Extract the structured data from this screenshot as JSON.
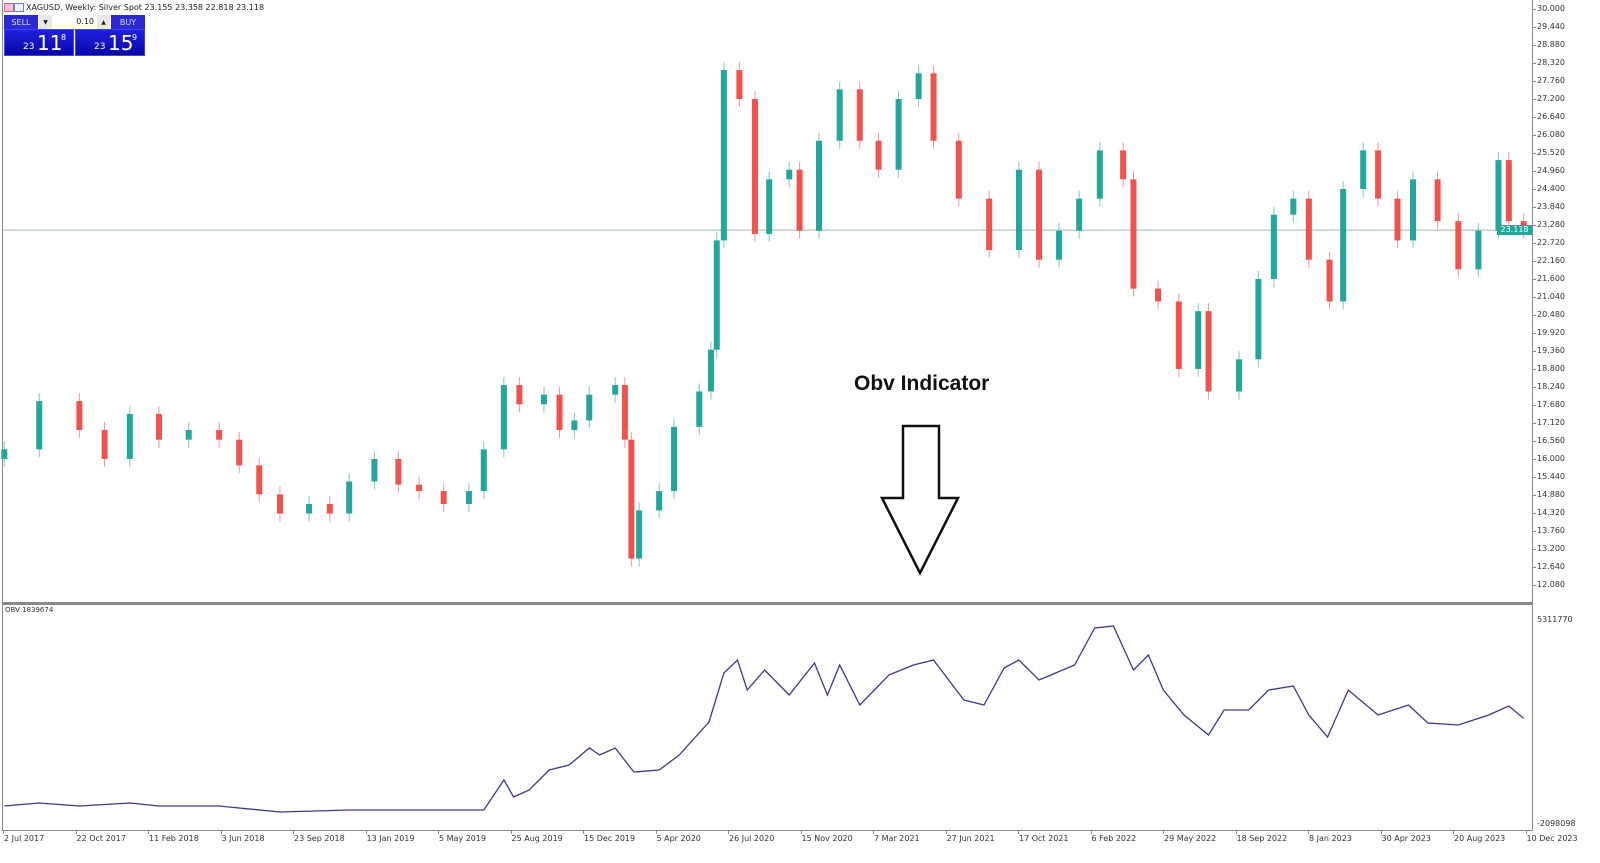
{
  "header": {
    "title": "XAGUSD, Weekly:  Silver Spot  23.155 23.358 22.818 23.118"
  },
  "trade_panel": {
    "sell_label": "SELL",
    "buy_label": "BUY",
    "lot": "0.10",
    "sell_price": {
      "big": "23",
      "main": "11",
      "small": "8"
    },
    "buy_price": {
      "big": "23",
      "main": "15",
      "small": "9"
    }
  },
  "annotation": {
    "text": "Obv Indicator",
    "icon": "arrow-down-icon"
  },
  "colors": {
    "bull": "#26a69a",
    "bear": "#ef5350",
    "obv_line": "#3a3a8c",
    "price_line": "#a0b8b0"
  },
  "chart_data": [
    {
      "type": "candlestick",
      "symbol": "XAGUSD",
      "timeframe": "Weekly",
      "ylim": [
        11.7,
        30.2
      ],
      "current_price": "23.118",
      "y_ticks": [
        "30.000",
        "29.440",
        "28.880",
        "28.320",
        "27.760",
        "27.200",
        "26.640",
        "26.080",
        "25.520",
        "24.960",
        "24.400",
        "23.840",
        "23.280",
        "22.720",
        "22.160",
        "21.600",
        "21.040",
        "20.480",
        "19.920",
        "19.360",
        "18.800",
        "18.240",
        "17.680",
        "17.120",
        "16.560",
        "16.000",
        "15.440",
        "14.880",
        "14.320",
        "13.760",
        "13.200",
        "12.640",
        "12.080"
      ],
      "closes": [
        [
          "2017-07-04",
          16.3
        ],
        [
          "2017-08-27",
          17.8
        ],
        [
          "2017-10-28",
          16.9
        ],
        [
          "2017-12-06",
          16.0
        ],
        [
          "2018-01-14",
          17.4
        ],
        [
          "2018-02-28",
          16.6
        ],
        [
          "2018-04-15",
          16.9
        ],
        [
          "2018-06-01",
          16.6
        ],
        [
          "2018-07-02",
          15.8
        ],
        [
          "2018-08-02",
          14.9
        ],
        [
          "2018-09-03",
          14.3
        ],
        [
          "2018-10-18",
          14.6
        ],
        [
          "2018-11-19",
          14.3
        ],
        [
          "2018-12-19",
          15.3
        ],
        [
          "2019-01-27",
          16.0
        ],
        [
          "2019-03-05",
          15.2
        ],
        [
          "2019-04-06",
          15.0
        ],
        [
          "2019-05-14",
          14.6
        ],
        [
          "2019-06-22",
          15.0
        ],
        [
          "2019-07-15",
          16.3
        ],
        [
          "2019-08-15",
          18.3
        ],
        [
          "2019-09-08",
          17.7
        ],
        [
          "2019-10-16",
          18.0
        ],
        [
          "2019-11-09",
          16.9
        ],
        [
          "2019-12-02",
          17.2
        ],
        [
          "2019-12-25",
          18.0
        ],
        [
          "2020-02-03",
          18.3
        ],
        [
          "2020-02-18",
          16.6
        ],
        [
          "2020-02-28",
          12.9
        ],
        [
          "2020-03-11",
          14.4
        ],
        [
          "2020-04-11",
          15.0
        ],
        [
          "2020-05-04",
          17.0
        ],
        [
          "2020-06-12",
          18.1
        ],
        [
          "2020-06-30",
          19.4
        ],
        [
          "2020-07-09",
          22.8
        ],
        [
          "2020-07-20",
          28.1
        ],
        [
          "2020-08-13",
          27.2
        ],
        [
          "2020-09-06",
          23.0
        ],
        [
          "2020-09-28",
          24.7
        ],
        [
          "2020-10-29",
          25.0
        ],
        [
          "2020-11-14",
          23.1
        ],
        [
          "2020-12-14",
          25.9
        ],
        [
          "2021-01-15",
          27.5
        ],
        [
          "2021-02-15",
          25.9
        ],
        [
          "2021-03-16",
          25.0
        ],
        [
          "2021-04-16",
          27.2
        ],
        [
          "2021-05-17",
          28.0
        ],
        [
          "2021-06-09",
          25.9
        ],
        [
          "2021-07-18",
          24.1
        ],
        [
          "2021-09-03",
          22.5
        ],
        [
          "2021-10-19",
          25.0
        ],
        [
          "2021-11-19",
          22.2
        ],
        [
          "2021-12-20",
          23.1
        ],
        [
          "2022-01-20",
          24.1
        ],
        [
          "2022-02-21",
          25.6
        ],
        [
          "2022-03-29",
          24.7
        ],
        [
          "2022-04-14",
          21.3
        ],
        [
          "2022-05-22",
          20.9
        ],
        [
          "2022-06-23",
          18.8
        ],
        [
          "2022-07-23",
          20.6
        ],
        [
          "2022-08-08",
          18.1
        ],
        [
          "2022-09-24",
          19.1
        ],
        [
          "2022-10-24",
          21.6
        ],
        [
          "2022-11-17",
          23.6
        ],
        [
          "2022-12-17",
          24.1
        ],
        [
          "2023-01-10",
          22.2
        ],
        [
          "2023-02-11",
          20.9
        ],
        [
          "2023-03-04",
          24.4
        ],
        [
          "2023-04-04",
          25.6
        ],
        [
          "2023-04-27",
          24.1
        ],
        [
          "2023-05-27",
          22.8
        ],
        [
          "2023-06-20",
          24.7
        ],
        [
          "2023-07-28",
          23.4
        ],
        [
          "2023-08-29",
          21.9
        ],
        [
          "2023-09-29",
          23.1
        ],
        [
          "2023-10-30",
          25.3
        ],
        [
          "2023-11-15",
          23.4
        ],
        [
          "2023-12-08",
          23.118
        ]
      ]
    },
    {
      "type": "line",
      "name": "OBV",
      "label": "OBV 1839674",
      "ylim": [
        -2098098,
        5311770
      ],
      "y_ticks": [
        "5311770",
        "-2098098"
      ],
      "points": [
        [
          "2017-07-04",
          -1250000
        ],
        [
          "2017-08-27",
          -1145000
        ],
        [
          "2017-10-28",
          -1250000
        ],
        [
          "2018-01-14",
          -1145000
        ],
        [
          "2018-02-28",
          -1250000
        ],
        [
          "2018-06-01",
          -1250000
        ],
        [
          "2018-09-03",
          -1463000
        ],
        [
          "2018-12-19",
          -1392000
        ],
        [
          "2019-04-06",
          -1392000
        ],
        [
          "2019-07-15",
          -1392000
        ],
        [
          "2019-08-15",
          -334000
        ],
        [
          "2019-08-30",
          -934000
        ],
        [
          "2019-09-23",
          -687000
        ],
        [
          "2019-10-24",
          19000
        ],
        [
          "2019-11-24",
          195000
        ],
        [
          "2019-12-25",
          795000
        ],
        [
          "2020-01-10",
          548000
        ],
        [
          "2020-02-03",
          795000
        ],
        [
          "2020-03-03",
          -52000
        ],
        [
          "2020-04-11",
          19000
        ],
        [
          "2020-05-12",
          548000
        ],
        [
          "2020-06-27",
          1713000
        ],
        [
          "2020-07-20",
          3442000
        ],
        [
          "2020-08-10",
          3900000
        ],
        [
          "2020-08-25",
          2842000
        ],
        [
          "2020-09-21",
          3548000
        ],
        [
          "2020-10-29",
          2665000
        ],
        [
          "2020-12-07",
          3795000
        ],
        [
          "2020-12-27",
          2665000
        ],
        [
          "2021-01-15",
          3724000
        ],
        [
          "2021-02-15",
          2313000
        ],
        [
          "2021-04-01",
          3371000
        ],
        [
          "2021-05-09",
          3724000
        ],
        [
          "2021-06-09",
          3900000
        ],
        [
          "2021-07-26",
          2489000
        ],
        [
          "2021-08-26",
          2313000
        ],
        [
          "2021-09-26",
          3618000
        ],
        [
          "2021-10-19",
          3900000
        ],
        [
          "2021-11-19",
          3195000
        ],
        [
          "2022-01-13",
          3724000
        ],
        [
          "2022-02-13",
          5029000
        ],
        [
          "2022-03-14",
          5100000
        ],
        [
          "2022-04-14",
          3548000
        ],
        [
          "2022-05-07",
          4077000
        ],
        [
          "2022-05-30",
          2842000
        ],
        [
          "2022-07-01",
          1960000
        ],
        [
          "2022-08-08",
          1254000
        ],
        [
          "2022-09-01",
          2136000
        ],
        [
          "2022-10-09",
          2136000
        ],
        [
          "2022-11-09",
          2842000
        ],
        [
          "2022-12-17",
          2983000
        ],
        [
          "2023-01-10",
          1960000
        ],
        [
          "2023-02-08",
          1183000
        ],
        [
          "2023-03-12",
          2842000
        ],
        [
          "2023-04-27",
          1960000
        ],
        [
          "2023-06-13",
          2313000
        ],
        [
          "2023-07-13",
          1677000
        ],
        [
          "2023-08-29",
          1607000
        ],
        [
          "2023-10-15",
          1960000
        ],
        [
          "2023-11-15",
          2277000
        ],
        [
          "2023-12-08",
          1839674
        ]
      ]
    }
  ],
  "x_axis": {
    "ticks": [
      "2 Jul 2017",
      "22 Oct 2017",
      "11 Feb 2018",
      "3 Jun 2018",
      "23 Sep 2018",
      "13 Jan 2019",
      "5 May 2019",
      "25 Aug 2019",
      "15 Dec 2019",
      "5 Apr 2020",
      "26 Jul 2020",
      "15 Nov 2020",
      "7 Mar 2021",
      "27 Jun 2021",
      "17 Oct 2021",
      "6 Feb 2022",
      "29 May 2022",
      "18 Sep 2022",
      "8 Jan 2023",
      "30 Apr 2023",
      "20 Aug 2023",
      "10 Dec 2023"
    ]
  }
}
